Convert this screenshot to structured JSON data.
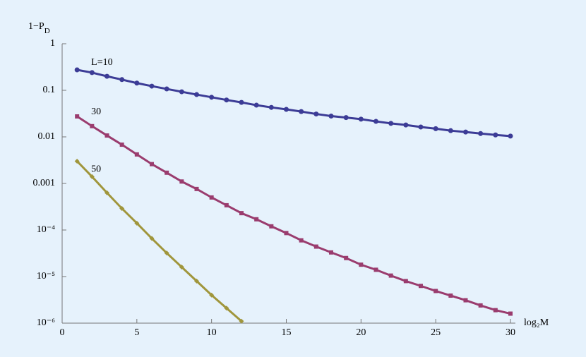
{
  "chart_data": {
    "type": "line",
    "log_y": true,
    "ylabel": {
      "text": "1−P",
      "sub": "D"
    },
    "xlabel": "log₂M",
    "x": [
      1,
      2,
      3,
      4,
      5,
      6,
      7,
      8,
      9,
      10,
      11,
      12,
      13,
      14,
      15,
      16,
      17,
      18,
      19,
      20,
      21,
      22,
      23,
      24,
      25,
      26,
      27,
      28,
      29,
      30
    ],
    "series": [
      {
        "name": "L=10",
        "color": "#3c3c96",
        "marker": "circle",
        "values": [
          0.275,
          0.24,
          0.2,
          0.17,
          0.143,
          0.123,
          0.107,
          0.093,
          0.081,
          0.071,
          0.062,
          0.055,
          0.048,
          0.043,
          0.039,
          0.035,
          0.031,
          0.028,
          0.026,
          0.024,
          0.0215,
          0.0195,
          0.018,
          0.0163,
          0.015,
          0.0136,
          0.0127,
          0.0118,
          0.011,
          0.0104
        ]
      },
      {
        "name": "30",
        "color": "#9a3c6e",
        "marker": "square",
        "values": [
          0.0275,
          0.017,
          0.0107,
          0.0068,
          0.0042,
          0.0026,
          0.0017,
          0.0011,
          0.00076,
          0.0005,
          0.00034,
          0.00023,
          0.00017,
          0.00012,
          8.6e-05,
          6e-05,
          4.4e-05,
          3.3e-05,
          2.5e-05,
          1.8e-05,
          1.4e-05,
          1.05e-05,
          8e-06,
          6.3e-06,
          4.9e-06,
          3.9e-06,
          3.1e-06,
          2.4e-06,
          1.9e-06,
          1.6e-06
        ]
      },
      {
        "name": "50",
        "color": "#a0963c",
        "marker": "diamond",
        "values": [
          0.003,
          0.0014,
          0.00063,
          0.00029,
          0.00014,
          6.6e-05,
          3.2e-05,
          1.6e-05,
          8e-06,
          4e-06,
          2.1e-06,
          1.1e-06,
          null,
          null,
          null,
          null,
          null,
          null,
          null,
          null,
          null,
          null,
          null,
          null,
          null,
          null,
          null,
          null,
          null,
          null
        ]
      }
    ],
    "xlim": [
      0,
      30
    ],
    "xticks": [
      0,
      5,
      10,
      15,
      20,
      25,
      30
    ],
    "ylim": [
      1e-06,
      1
    ],
    "yticks": [
      {
        "value": 1e-06,
        "label": "10⁻⁶"
      },
      {
        "value": 1e-05,
        "label": "10⁻⁵"
      },
      {
        "value": 0.0001,
        "label": "10⁻⁴"
      },
      0.001,
      0.01,
      0.1,
      1
    ]
  }
}
